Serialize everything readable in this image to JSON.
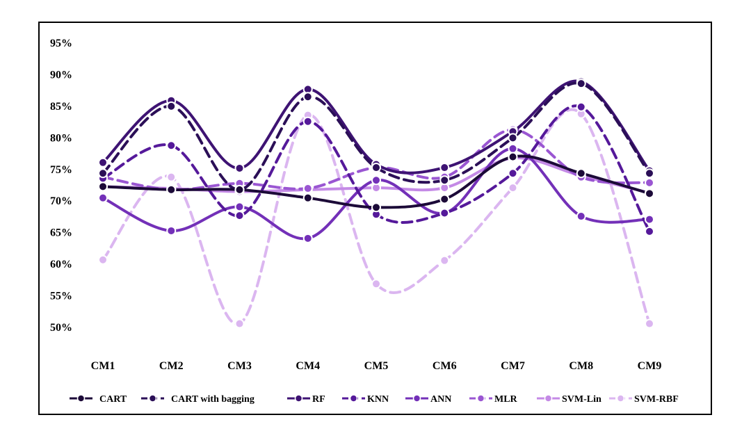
{
  "chart_data": {
    "type": "line",
    "title": "",
    "xlabel": "",
    "ylabel": "",
    "ylim": [
      50,
      95
    ],
    "y_ticks": [
      "50%",
      "55%",
      "60%",
      "65%",
      "70%",
      "75%",
      "80%",
      "85%",
      "90%",
      "95%"
    ],
    "grid": false,
    "legend_position": "bottom",
    "categories": [
      "CM1",
      "CM2",
      "CM3",
      "CM4",
      "CM5",
      "CM6",
      "CM7",
      "CM8",
      "CM9"
    ],
    "series": [
      {
        "name": "CART",
        "color": "#1c0a38",
        "dashed": false,
        "values": [
          72.3,
          71.8,
          71.8,
          70.5,
          69.0,
          70.3,
          77.0,
          74.4,
          71.2
        ]
      },
      {
        "name": "CART with bagging",
        "color": "#2b0f57",
        "dashed": true,
        "values": [
          74.4,
          85.0,
          71.8,
          86.5,
          75.3,
          73.3,
          80.0,
          88.6,
          74.4
        ]
      },
      {
        "name": "RF",
        "color": "#3e1373",
        "dashed": false,
        "values": [
          76.1,
          85.9,
          75.2,
          87.7,
          75.8,
          75.3,
          81.0,
          88.9,
          74.8
        ]
      },
      {
        "name": "KNN",
        "color": "#55199a",
        "dashed": true,
        "values": [
          73.6,
          78.8,
          67.7,
          82.6,
          67.9,
          68.1,
          74.4,
          84.9,
          65.2
        ]
      },
      {
        "name": "ANN",
        "color": "#7330b8",
        "dashed": false,
        "values": [
          70.5,
          65.3,
          69.1,
          64.1,
          73.3,
          68.1,
          78.3,
          67.6,
          67.1
        ]
      },
      {
        "name": "MLR",
        "color": "#9a56d2",
        "dashed": true,
        "values": [
          73.8,
          71.8,
          72.8,
          72.0,
          75.3,
          73.8,
          81.3,
          73.8,
          72.9
        ]
      },
      {
        "name": "SVM-Lin",
        "color": "#c48ae6",
        "dashed": false,
        "values": [
          72.3,
          72.0,
          71.5,
          71.8,
          72.1,
          72.1,
          76.8,
          74.0,
          71.3
        ]
      },
      {
        "name": "SVM-RBF",
        "color": "#dbb6f0",
        "dashed": true,
        "values": [
          60.7,
          73.8,
          50.6,
          83.6,
          56.9,
          60.6,
          72.1,
          83.8,
          50.6
        ]
      }
    ]
  }
}
